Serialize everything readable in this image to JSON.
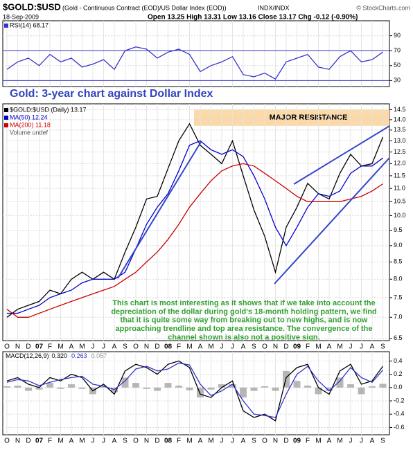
{
  "header": {
    "title": "$GOLD:$USD",
    "subtitle": "(Gold - Continuous Contract (EOD)/US Dollar Index (EOD))",
    "exchange": "INDX/INDX",
    "credit": "© StockCharts.com",
    "date": "18-Sep-2009",
    "quote": "Open 13.25 High 13.31 Low 13.16 Close 13.17 Chg -0.12 (-0.90%)"
  },
  "chart_data": [
    {
      "type": "line",
      "ylim": [
        22,
        110
      ],
      "yticks": [
        30,
        50,
        70,
        90
      ],
      "reference_lines": [
        70,
        30
      ],
      "grid": true,
      "series": [
        {
          "name": "RSI(14) 68.17",
          "color": "#3333cc",
          "values": [
            45,
            55,
            60,
            50,
            65,
            55,
            60,
            48,
            52,
            58,
            45,
            70,
            75,
            72,
            60,
            68,
            72,
            65,
            42,
            50,
            55,
            62,
            38,
            35,
            40,
            32,
            55,
            60,
            65,
            48,
            45,
            62,
            70,
            55,
            58,
            68.17
          ]
        }
      ]
    },
    {
      "type": "line",
      "title": "Gold: 3-year chart against Dollar Index",
      "log_scale": true,
      "grid": true,
      "ylim": [
        6.45,
        14.8
      ],
      "yticks": [
        {
          "value": 14.5,
          "label": "14.5"
        },
        {
          "value": 14.0,
          "label": "14.0"
        },
        {
          "value": 13.5,
          "label": "13.5"
        },
        {
          "value": 13.0,
          "label": "13.0"
        },
        {
          "value": 12.5,
          "label": "12.5"
        },
        {
          "value": 12.0,
          "label": "12.0"
        },
        {
          "value": 11.5,
          "label": "11.5"
        },
        {
          "value": 11.0,
          "label": "11.0"
        },
        {
          "value": 10.5,
          "label": "10.5"
        },
        {
          "value": 10.0,
          "label": "10.0"
        },
        {
          "value": 9.5,
          "label": "9.5"
        },
        {
          "value": 9.0,
          "label": "9.0"
        },
        {
          "value": 8.5,
          "label": "8.5"
        },
        {
          "value": 8.0,
          "label": "8.0"
        },
        {
          "value": 7.5,
          "label": "7.5"
        },
        {
          "value": 7.0,
          "label": "7.0"
        },
        {
          "value": 6.5,
          "label": "6.5"
        }
      ],
      "categories": [
        "O",
        "N",
        "D",
        "07",
        "F",
        "M",
        "A",
        "M",
        "J",
        "J",
        "A",
        "S",
        "O",
        "N",
        "D",
        "08",
        "F",
        "M",
        "A",
        "M",
        "J",
        "J",
        "A",
        "S",
        "O",
        "N",
        "D",
        "09",
        "F",
        "M",
        "A",
        "M",
        "J",
        "J",
        "A",
        "S"
      ],
      "resistance": {
        "label": "MAJOR RESISTANCE",
        "range": [
          13.7,
          14.5
        ]
      },
      "legend_extra": "Volume undef",
      "annotation": [
        "This chart is most interesting as it shows that if we take into account the",
        "depreciation of the dollar during gold's 18-month holding pattern, we find",
        "that it is quite some way from breaking out to new highs, and is now",
        "approaching trendline and top area resistance. The convergence of the",
        "channel shown is also not a positive sign."
      ],
      "series": [
        {
          "name": "$GOLD:$USD (Daily) 13.17",
          "color": "#000000",
          "values": [
            7.0,
            7.2,
            7.3,
            7.4,
            7.7,
            7.6,
            8.0,
            8.2,
            8.0,
            8.2,
            8.0,
            8.8,
            9.6,
            10.6,
            10.7,
            11.8,
            13.0,
            13.8,
            12.8,
            12.4,
            12.0,
            13.0,
            11.5,
            10.2,
            9.3,
            8.2,
            9.6,
            10.3,
            11.2,
            10.8,
            10.6,
            11.6,
            12.4,
            11.9,
            12.0,
            13.17
          ]
        },
        {
          "name": "MA(50) 12.24",
          "color": "#0000cc",
          "values": [
            7.1,
            7.1,
            7.2,
            7.3,
            7.5,
            7.6,
            7.7,
            7.9,
            8.0,
            8.0,
            8.0,
            8.2,
            8.9,
            9.7,
            10.3,
            10.8,
            11.7,
            12.8,
            13.0,
            12.6,
            12.4,
            12.6,
            12.3,
            11.5,
            10.6,
            9.6,
            9.0,
            9.6,
            10.3,
            10.8,
            10.7,
            10.9,
            11.6,
            11.9,
            11.9,
            12.24
          ]
        },
        {
          "name": "MA(200) 11.18",
          "color": "#cc0000",
          "values": [
            7.2,
            7.0,
            7.0,
            7.1,
            7.2,
            7.3,
            7.4,
            7.5,
            7.6,
            7.7,
            7.8,
            8.0,
            8.2,
            8.5,
            8.8,
            9.2,
            9.7,
            10.3,
            10.8,
            11.3,
            11.7,
            11.9,
            12.0,
            11.9,
            11.6,
            11.3,
            11.0,
            10.7,
            10.5,
            10.5,
            10.5,
            10.5,
            10.6,
            10.7,
            10.9,
            11.18
          ]
        }
      ]
    },
    {
      "type": "line",
      "legend": "MACD(12,26,9)",
      "ylim": [
        -0.71,
        0.54
      ],
      "grid": true,
      "yticks": [
        0.4,
        0.2,
        {
          "value": 0,
          "label": "0.0"
        },
        -0.2,
        -0.4,
        -0.6
      ],
      "categories": [
        "O",
        "N",
        "D",
        "07",
        "F",
        "M",
        "A",
        "M",
        "J",
        "J",
        "A",
        "S",
        "O",
        "N",
        "D",
        "08",
        "F",
        "M",
        "A",
        "M",
        "J",
        "J",
        "A",
        "S",
        "O",
        "N",
        "D",
        "09",
        "F",
        "M",
        "A",
        "M",
        "J",
        "J",
        "A",
        "S"
      ],
      "series": [
        {
          "name": "0.320",
          "color": "#000000",
          "values": [
            0.1,
            0.15,
            0.05,
            0.0,
            0.15,
            0.1,
            0.2,
            0.15,
            -0.05,
            0.05,
            -0.1,
            0.25,
            0.35,
            0.3,
            0.2,
            0.35,
            0.4,
            0.3,
            -0.1,
            -0.15,
            0.0,
            0.1,
            -0.35,
            -0.45,
            -0.4,
            -0.5,
            0.15,
            0.3,
            0.35,
            0.0,
            -0.1,
            0.25,
            0.35,
            0.05,
            0.1,
            0.32
          ]
        },
        {
          "name": "0.263",
          "color": "#3333cc",
          "values": [
            0.08,
            0.12,
            0.1,
            0.03,
            0.08,
            0.12,
            0.15,
            0.17,
            0.05,
            0.02,
            -0.03,
            0.1,
            0.28,
            0.32,
            0.25,
            0.28,
            0.37,
            0.34,
            0.05,
            -0.12,
            -0.05,
            0.05,
            -0.2,
            -0.4,
            -0.42,
            -0.45,
            -0.1,
            0.2,
            0.32,
            0.1,
            -0.05,
            0.1,
            0.3,
            0.15,
            0.08,
            0.263
          ]
        },
        {
          "name": "0.057",
          "color": "#999999",
          "style": "histogram",
          "values": [
            0.02,
            0.03,
            -0.05,
            -0.03,
            0.07,
            -0.02,
            0.05,
            -0.02,
            -0.1,
            0.03,
            -0.07,
            0.15,
            0.07,
            -0.02,
            -0.05,
            0.07,
            0.03,
            -0.04,
            -0.15,
            -0.03,
            0.05,
            0.05,
            -0.15,
            -0.05,
            0.02,
            -0.05,
            0.25,
            0.1,
            0.03,
            -0.1,
            -0.05,
            0.15,
            0.05,
            -0.1,
            0.02,
            0.057
          ]
        }
      ]
    }
  ]
}
